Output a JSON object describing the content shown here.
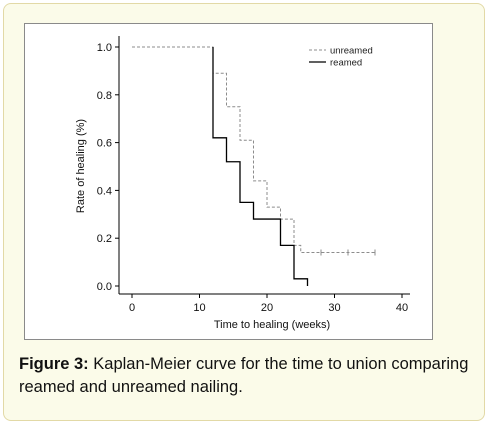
{
  "figure": {
    "label": "Figure 3:",
    "caption": " Kaplan-Meier curve for the time to union comparing reamed and unreamed nailing."
  },
  "chart_data": {
    "type": "line",
    "subtype": "step",
    "xlabel": "Time to healing (weeks)",
    "ylabel": "Rate of healing (%)",
    "xlim": [
      0,
      40
    ],
    "ylim": [
      0,
      1.0
    ],
    "xticks": [
      0,
      10,
      20,
      30,
      40
    ],
    "yticks": [
      "0.0",
      "0.2",
      "0.4",
      "0.6",
      "0.8",
      "1.0"
    ],
    "xtick_labels": [
      "0",
      "10",
      "20",
      "30",
      "40"
    ],
    "grid": false,
    "legend": "top-right",
    "colors": {
      "unreamed": "#8c8c8c",
      "reamed": "#000000"
    },
    "series": [
      {
        "name": "unreamed",
        "style": "dashed",
        "steps": [
          [
            0,
            1.0
          ],
          [
            12,
            0.89
          ],
          [
            14,
            0.75
          ],
          [
            16,
            0.61
          ],
          [
            18,
            0.44
          ],
          [
            20,
            0.33
          ],
          [
            22,
            0.28
          ],
          [
            24,
            0.17
          ],
          [
            25,
            0.14
          ],
          [
            36,
            0.14
          ]
        ],
        "censored": [
          [
            28,
            0.14
          ],
          [
            32,
            0.14
          ],
          [
            36,
            0.14
          ]
        ]
      },
      {
        "name": "reamed",
        "style": "solid",
        "steps": [
          [
            12,
            1.0
          ],
          [
            12,
            0.89
          ],
          [
            12,
            0.62
          ],
          [
            14,
            0.52
          ],
          [
            16,
            0.35
          ],
          [
            18,
            0.28
          ],
          [
            22,
            0.17
          ],
          [
            24,
            0.03
          ],
          [
            26,
            0.0
          ]
        ]
      }
    ]
  }
}
